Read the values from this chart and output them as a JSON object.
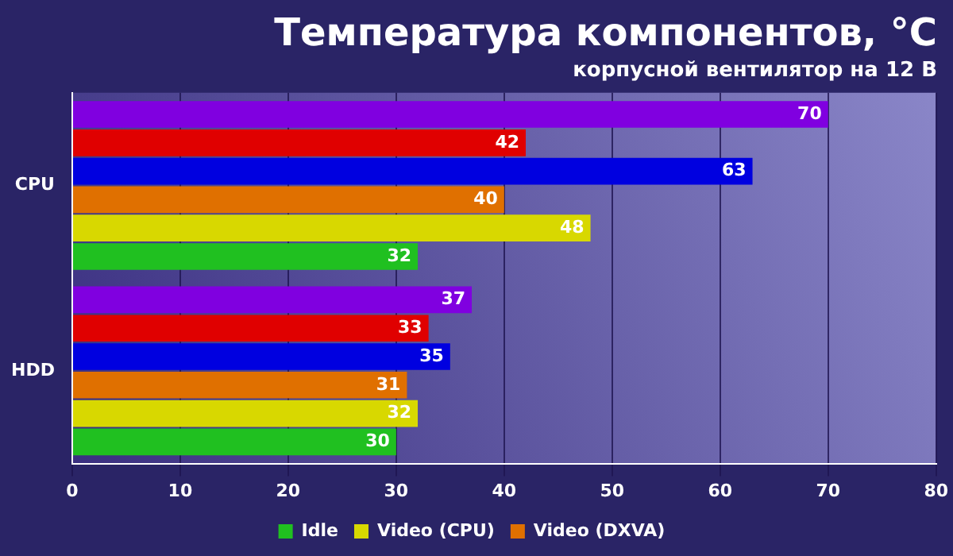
{
  "chart_data": {
    "type": "bar",
    "orientation": "horizontal",
    "title": "Температура компонентов, °C",
    "subtitle": "корпусной вентилятор на 12 В",
    "categories": [
      "CPU",
      "HDD"
    ],
    "series": [
      {
        "name": "Idle",
        "color": "#20c020",
        "values": [
          32,
          30
        ]
      },
      {
        "name": "Video (CPU)",
        "color": "#d8d800",
        "values": [
          48,
          32
        ]
      },
      {
        "name": "Video (DXVA)",
        "color": "#e07000",
        "values": [
          40,
          31
        ]
      },
      {
        "color": "#0000e0",
        "values": [
          63,
          35
        ]
      },
      {
        "color": "#e00000",
        "values": [
          42,
          33
        ]
      },
      {
        "color": "#8000e0",
        "values": [
          70,
          37
        ]
      }
    ],
    "xlim": [
      0,
      80
    ],
    "xticks": [
      0,
      10,
      20,
      30,
      40,
      50,
      60,
      70,
      80
    ],
    "grid": "x",
    "legend": "bottom",
    "data_labels": true
  }
}
